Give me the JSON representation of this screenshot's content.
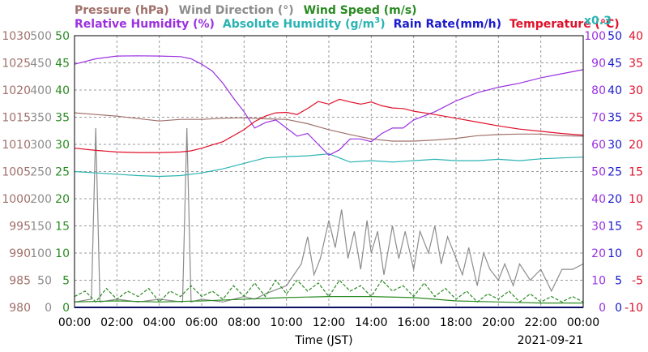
{
  "chart_data": {
    "type": "line",
    "xlabel": "Time (JST)",
    "date": "2021-09-21",
    "x_ticks": [
      "00:00",
      "02:00",
      "04:00",
      "06:00",
      "08:00",
      "10:00",
      "12:00",
      "14:00",
      "16:00",
      "18:00",
      "20:00",
      "22:00",
      "00:00"
    ],
    "legend_row1": [
      {
        "text": "Pressure (hPa)",
        "color": "#a0706a"
      },
      {
        "text": "Wind Direction (°)",
        "color": "#8c8c8c"
      },
      {
        "text": "Wind Speed (m/s)",
        "color": "#2a8a22"
      }
    ],
    "legend_row2": [
      {
        "text": "Relative Humidity (%)",
        "color": "#9b30e0"
      },
      {
        "text": "Absolute Humidity (g/m",
        "sup": "3",
        "close": ")",
        "color": "#2ab3b3"
      },
      {
        "text": "Rain Rate(mm/h)",
        "color": "#1a1acc"
      },
      {
        "text": "Temperature (°C)",
        "color": "#e0102a"
      }
    ],
    "x03_label": "x0.3",
    "axes": {
      "pressure": {
        "color": "#a0706a",
        "ticks": [
          "980",
          "985",
          "990",
          "995",
          "1000",
          "1005",
          "1010",
          "1015",
          "1020",
          "1025",
          "1030"
        ],
        "range": [
          980,
          1030
        ]
      },
      "wind_direction": {
        "color": "#8c8c8c",
        "ticks": [
          "0",
          "50",
          "100",
          "150",
          "200",
          "250",
          "300",
          "350",
          "400",
          "450",
          "500"
        ],
        "range": [
          0,
          500
        ]
      },
      "wind_speed": {
        "color": "#2a8a22",
        "ticks": [
          "0",
          "5",
          "10",
          "15",
          "20",
          "25",
          "30",
          "35",
          "40",
          "45",
          "50"
        ],
        "range": [
          0,
          50
        ]
      },
      "humidity": {
        "color": "#9b30e0",
        "ticks": [
          "0",
          "10",
          "20",
          "30",
          "40",
          "50",
          "60",
          "70",
          "80",
          "90",
          "100"
        ],
        "range": [
          0,
          100
        ]
      },
      "rain_rate": {
        "color": "#1a1acc",
        "ticks": [
          "0",
          "5",
          "10",
          "15",
          "20",
          "25",
          "30",
          "35",
          "40",
          "45",
          "50"
        ],
        "range": [
          0,
          50
        ]
      },
      "temperature": {
        "color": "#e0102a",
        "ticks": [
          "-10",
          "-5",
          "0",
          "5",
          "10",
          "15",
          "20",
          "25",
          "30",
          "35",
          "40"
        ],
        "range": [
          -10,
          40
        ]
      }
    },
    "series": [
      {
        "key": "pressure",
        "color": "#a0706a",
        "points": [
          [
            0,
            1015.8
          ],
          [
            2,
            1015.2
          ],
          [
            4,
            1014.3
          ],
          [
            5,
            1014.6
          ],
          [
            6,
            1014.6
          ],
          [
            7,
            1014.8
          ],
          [
            8,
            1014.9
          ],
          [
            9,
            1014.7
          ],
          [
            10,
            1014.6
          ],
          [
            11,
            1013.8
          ],
          [
            12,
            1012.7
          ],
          [
            13,
            1011.8
          ],
          [
            14,
            1011.0
          ],
          [
            15,
            1010.6
          ],
          [
            16,
            1010.6
          ],
          [
            17,
            1010.8
          ],
          [
            18,
            1011.1
          ],
          [
            19,
            1011.6
          ],
          [
            20,
            1011.8
          ],
          [
            21,
            1011.9
          ],
          [
            22,
            1011.9
          ],
          [
            23,
            1011.6
          ],
          [
            24,
            1011.5
          ]
        ]
      },
      {
        "key": "temperature",
        "color": "#e0102a",
        "points": [
          [
            0,
            19.3
          ],
          [
            1,
            18.9
          ],
          [
            2,
            18.6
          ],
          [
            3,
            18.5
          ],
          [
            4,
            18.5
          ],
          [
            5,
            18.6
          ],
          [
            5.5,
            18.8
          ],
          [
            6,
            19.3
          ],
          [
            7,
            20.5
          ],
          [
            8,
            22.7
          ],
          [
            8.5,
            24.2
          ],
          [
            9,
            25.2
          ],
          [
            9.5,
            25.8
          ],
          [
            10,
            25.9
          ],
          [
            10.5,
            25.5
          ],
          [
            11,
            26.6
          ],
          [
            11.5,
            27.9
          ],
          [
            12,
            27.4
          ],
          [
            12.5,
            28.3
          ],
          [
            13,
            27.8
          ],
          [
            13.5,
            27.4
          ],
          [
            14,
            27.8
          ],
          [
            14.5,
            27.1
          ],
          [
            15,
            26.7
          ],
          [
            15.5,
            26.6
          ],
          [
            16,
            26.1
          ],
          [
            17,
            25.5
          ],
          [
            18,
            24.8
          ],
          [
            19,
            24.1
          ],
          [
            20,
            23.4
          ],
          [
            21,
            22.8
          ],
          [
            22,
            22.4
          ],
          [
            23,
            22.0
          ],
          [
            24,
            21.7
          ]
        ]
      },
      {
        "key": "humidity",
        "color": "#9b30e0",
        "points": [
          [
            0,
            89.5
          ],
          [
            1,
            91.5
          ],
          [
            2,
            92.5
          ],
          [
            3,
            92.6
          ],
          [
            4,
            92.5
          ],
          [
            5,
            92.3
          ],
          [
            5.5,
            91.5
          ],
          [
            6,
            89.5
          ],
          [
            6.5,
            87
          ],
          [
            7,
            82.5
          ],
          [
            7.5,
            77
          ],
          [
            8,
            72
          ],
          [
            8.5,
            66
          ],
          [
            9,
            68
          ],
          [
            9.5,
            69
          ],
          [
            10,
            66
          ],
          [
            10.5,
            63
          ],
          [
            11,
            64
          ],
          [
            11.5,
            60
          ],
          [
            12,
            56
          ],
          [
            12.5,
            58
          ],
          [
            13,
            62
          ],
          [
            13.5,
            62
          ],
          [
            14,
            61
          ],
          [
            14.5,
            64
          ],
          [
            15,
            66
          ],
          [
            15.5,
            66
          ],
          [
            16,
            69
          ],
          [
            17,
            72
          ],
          [
            18,
            76
          ],
          [
            19,
            79
          ],
          [
            20,
            81
          ],
          [
            21,
            82.5
          ],
          [
            22,
            84.5
          ],
          [
            23,
            86
          ],
          [
            24,
            87.5
          ]
        ]
      },
      {
        "key": "abs_humidity",
        "color": "#2ab3b3",
        "points": [
          [
            0,
            50
          ],
          [
            1,
            49.5
          ],
          [
            2,
            49
          ],
          [
            3,
            48.5
          ],
          [
            4,
            48.2
          ],
          [
            5,
            48.5
          ],
          [
            6,
            49.5
          ],
          [
            7,
            51
          ],
          [
            8,
            53
          ],
          [
            9,
            55
          ],
          [
            10,
            55.5
          ],
          [
            11,
            55.8
          ],
          [
            12,
            56.5
          ],
          [
            12.5,
            55
          ],
          [
            13,
            53.5
          ],
          [
            14,
            54
          ],
          [
            15,
            53.5
          ],
          [
            16,
            54
          ],
          [
            17,
            54.5
          ],
          [
            18,
            54
          ],
          [
            19,
            54
          ],
          [
            20,
            54.5
          ],
          [
            21,
            54
          ],
          [
            22,
            54.7
          ],
          [
            23,
            55
          ],
          [
            24,
            55.3
          ]
        ]
      },
      {
        "key": "wind_direction",
        "color": "#8c8c8c",
        "points": [
          [
            0,
            10
          ],
          [
            0.8,
            15
          ],
          [
            1,
            330
          ],
          [
            1.2,
            10
          ],
          [
            2,
            15
          ],
          [
            3,
            10
          ],
          [
            4,
            15
          ],
          [
            5.1,
            10
          ],
          [
            5.3,
            330
          ],
          [
            5.5,
            10
          ],
          [
            6,
            15
          ],
          [
            7,
            10
          ],
          [
            8,
            20
          ],
          [
            8.5,
            15
          ],
          [
            9,
            25
          ],
          [
            10,
            40
          ],
          [
            10.7,
            80
          ],
          [
            11,
            130
          ],
          [
            11.3,
            60
          ],
          [
            11.6,
            90
          ],
          [
            12,
            160
          ],
          [
            12.3,
            110
          ],
          [
            12.6,
            180
          ],
          [
            12.9,
            90
          ],
          [
            13.2,
            140
          ],
          [
            13.5,
            70
          ],
          [
            13.8,
            160
          ],
          [
            14,
            100
          ],
          [
            14.3,
            140
          ],
          [
            14.6,
            60
          ],
          [
            15,
            150
          ],
          [
            15.3,
            90
          ],
          [
            15.6,
            140
          ],
          [
            16,
            70
          ],
          [
            16.3,
            140
          ],
          [
            16.7,
            100
          ],
          [
            17,
            150
          ],
          [
            17.3,
            80
          ],
          [
            17.6,
            130
          ],
          [
            18,
            90
          ],
          [
            18.3,
            60
          ],
          [
            18.6,
            110
          ],
          [
            19,
            40
          ],
          [
            19.3,
            100
          ],
          [
            19.6,
            70
          ],
          [
            20,
            50
          ],
          [
            20.3,
            80
          ],
          [
            20.7,
            40
          ],
          [
            21,
            80
          ],
          [
            21.5,
            50
          ],
          [
            22,
            70
          ],
          [
            22.5,
            30
          ],
          [
            23,
            70
          ],
          [
            23.5,
            70
          ],
          [
            24,
            80
          ]
        ]
      },
      {
        "key": "wind_speed",
        "color": "#2a8a22",
        "style": "dashed",
        "points": [
          [
            0,
            2
          ],
          [
            0.5,
            3
          ],
          [
            1,
            1
          ],
          [
            1.5,
            3.5
          ],
          [
            2,
            1.5
          ],
          [
            2.5,
            3
          ],
          [
            3,
            2
          ],
          [
            3.5,
            3.5
          ],
          [
            4,
            1
          ],
          [
            4.5,
            3
          ],
          [
            5,
            2
          ],
          [
            5.5,
            4
          ],
          [
            6,
            2
          ],
          [
            6.5,
            3
          ],
          [
            7,
            1.5
          ],
          [
            7.5,
            4
          ],
          [
            8,
            2
          ],
          [
            8.5,
            4.5
          ],
          [
            9,
            2
          ],
          [
            9.5,
            5
          ],
          [
            10,
            2.5
          ],
          [
            10.5,
            5
          ],
          [
            11,
            3
          ],
          [
            11.5,
            4.5
          ],
          [
            12,
            2
          ],
          [
            12.5,
            5
          ],
          [
            13,
            3
          ],
          [
            13.5,
            4
          ],
          [
            14,
            2
          ],
          [
            14.5,
            5
          ],
          [
            15,
            3
          ],
          [
            15.5,
            4
          ],
          [
            16,
            2
          ],
          [
            16.5,
            4.5
          ],
          [
            17,
            2
          ],
          [
            17.5,
            3.5
          ],
          [
            18,
            1.5
          ],
          [
            18.5,
            3
          ],
          [
            19,
            1
          ],
          [
            19.5,
            2.5
          ],
          [
            20,
            1.5
          ],
          [
            20.5,
            3
          ],
          [
            21,
            1
          ],
          [
            21.5,
            2.5
          ],
          [
            22,
            1
          ],
          [
            22.5,
            2
          ],
          [
            23,
            1
          ],
          [
            23.5,
            2
          ],
          [
            24,
            1
          ]
        ]
      },
      {
        "key": "wind_speed_avg",
        "color": "#2a8a22",
        "points": [
          [
            0,
            1
          ],
          [
            2,
            1.2
          ],
          [
            4,
            1
          ],
          [
            6,
            1.2
          ],
          [
            8,
            1.5
          ],
          [
            10,
            1.8
          ],
          [
            12,
            2
          ],
          [
            14,
            2
          ],
          [
            16,
            1.8
          ],
          [
            18,
            1.2
          ],
          [
            20,
            1
          ],
          [
            22,
            0.8
          ],
          [
            24,
            0.8
          ]
        ]
      },
      {
        "key": "rain_rate",
        "color": "#1a1acc",
        "points": [
          [
            0,
            0
          ],
          [
            24,
            0
          ]
        ]
      }
    ]
  }
}
